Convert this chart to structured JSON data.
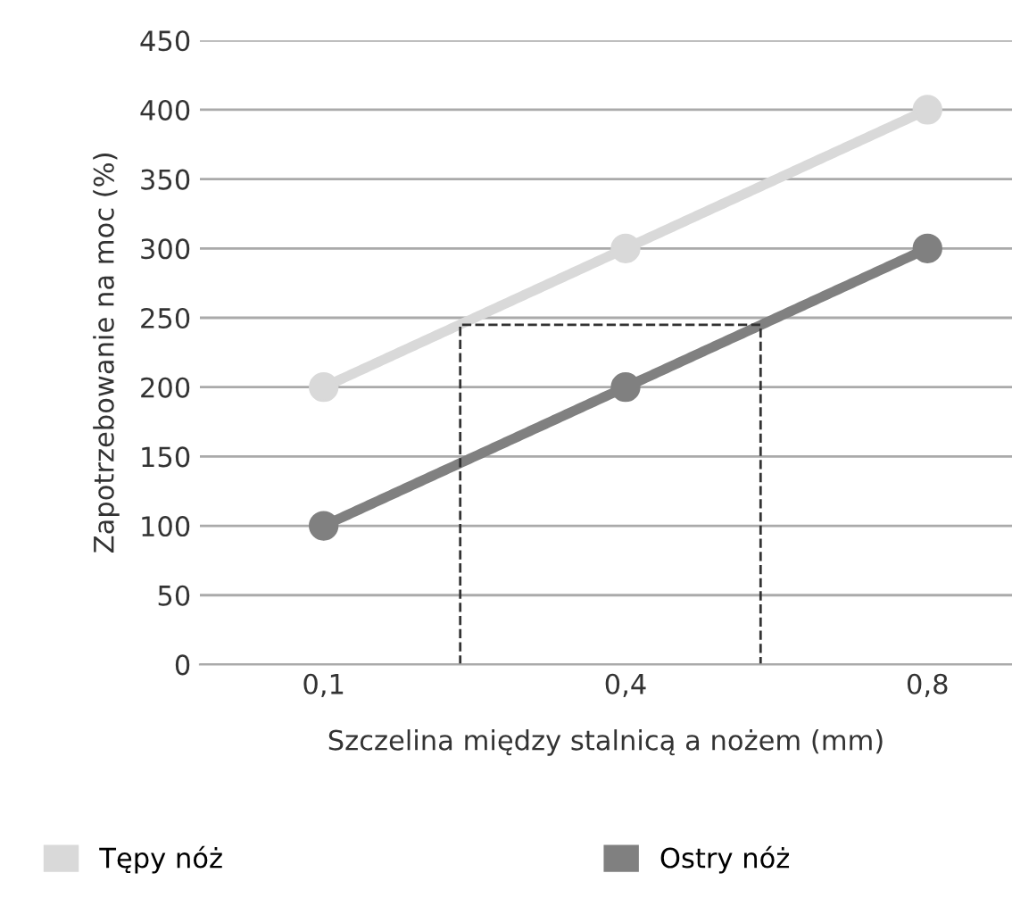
{
  "chart_data": {
    "type": "line",
    "xlabel": "Szczelina między stalnicą a nożem (mm)",
    "ylabel": "Zapotrzebowanie na moc (%)",
    "categories": [
      "0,1",
      "0,4",
      "0,8"
    ],
    "series": [
      {
        "name": "Tępy nóż",
        "color": "#d9d9d9",
        "values": [
          200,
          300,
          400
        ]
      },
      {
        "name": "Ostry nóż",
        "color": "#808080",
        "values": [
          100,
          200,
          300
        ]
      }
    ],
    "ylim": [
      0,
      450
    ],
    "yticks": [
      0,
      50,
      100,
      150,
      200,
      250,
      300,
      350,
      400,
      450
    ],
    "ref_lines": [
      {
        "axis": "y",
        "value": 245,
        "line_style": "dashed",
        "color": "#333333"
      }
    ],
    "grid": "y",
    "legend": "bottom",
    "marker": "circle",
    "line_style": "solid"
  }
}
